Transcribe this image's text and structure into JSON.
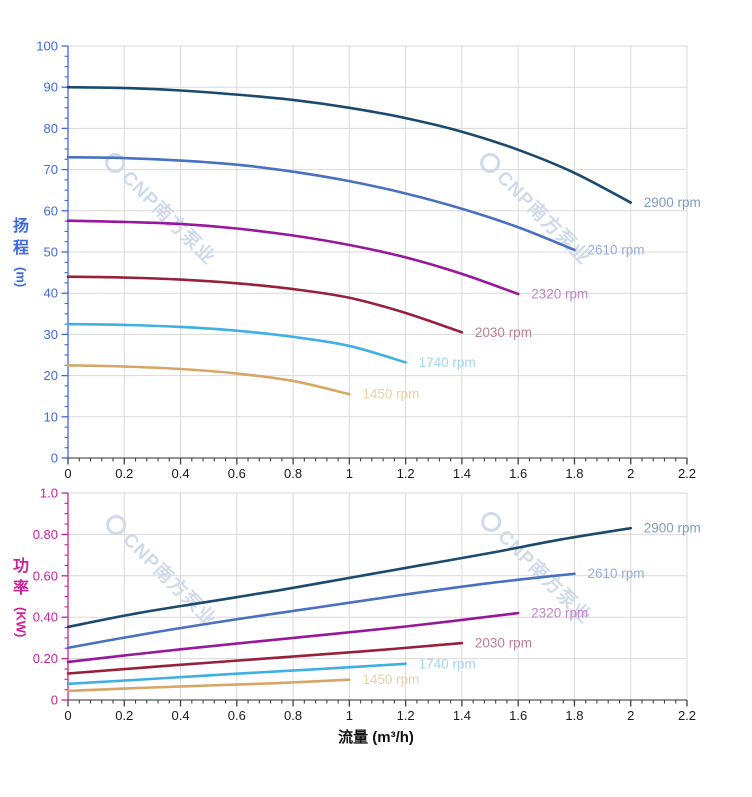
{
  "watermark": {
    "text": "CNP南方泵业",
    "logo_icon": "cnp-circle-logo",
    "color": "#a9bedb"
  },
  "colors": {
    "grid": "#d9d9d9",
    "x_axis_line": "#595959",
    "x_tick": "#404040",
    "x_tick_label": "#1a1a1a",
    "head_axis": "#4169e1",
    "power_axis": "#cc2299"
  },
  "x_axis": {
    "title": "流量 (m³/h)",
    "range": [
      0,
      2.2
    ],
    "ticks": [
      "0",
      "0.2",
      "0.4",
      "0.6",
      "0.8",
      "1",
      "1.2",
      "1.4",
      "1.6",
      "1.8",
      "2",
      "2.2"
    ],
    "minor_step": 0.04
  },
  "chart_data": [
    {
      "type": "line",
      "name": "head-vs-flow",
      "xlabel": "流量 (m³/h)",
      "ylabel": "扬程 (m)",
      "xlim": [
        0,
        2.2
      ],
      "ylim": [
        0,
        100
      ],
      "grid": "on",
      "legend_position": "curve-end-labels",
      "y_axis": {
        "title": "扬程",
        "unit": "(m)",
        "color": "#4169e1",
        "range": [
          0,
          100
        ],
        "ticks": [
          "0",
          "10",
          "20",
          "30",
          "40",
          "50",
          "60",
          "70",
          "80",
          "90",
          "100"
        ],
        "minor_step": 2.5
      },
      "series": [
        {
          "name": "2900 rpm",
          "color": "#1b4a6e",
          "label_color": "#7f9cba",
          "points": [
            [
              0,
              90
            ],
            [
              0.2,
              89.8
            ],
            [
              0.4,
              89.2
            ],
            [
              0.6,
              88.2
            ],
            [
              0.8,
              86.9
            ],
            [
              1.0,
              85.0
            ],
            [
              1.2,
              82.5
            ],
            [
              1.4,
              79.2
            ],
            [
              1.6,
              74.8
            ],
            [
              1.8,
              69.2
            ],
            [
              2.0,
              62.0
            ]
          ]
        },
        {
          "name": "2610 rpm",
          "color": "#4a70c0",
          "label_color": "#97abdf",
          "points": [
            [
              0,
              73
            ],
            [
              0.2,
              72.8
            ],
            [
              0.4,
              72.2
            ],
            [
              0.6,
              71.2
            ],
            [
              0.8,
              69.5
            ],
            [
              1.0,
              67.2
            ],
            [
              1.2,
              64.2
            ],
            [
              1.4,
              60.5
            ],
            [
              1.6,
              56.0
            ],
            [
              1.8,
              50.5
            ]
          ]
        },
        {
          "name": "2320 rpm",
          "color": "#97189a",
          "label_color": "#c183cb",
          "points": [
            [
              0,
              57.6
            ],
            [
              0.2,
              57.3
            ],
            [
              0.4,
              56.8
            ],
            [
              0.6,
              55.7
            ],
            [
              0.8,
              54.0
            ],
            [
              1.0,
              51.7
            ],
            [
              1.2,
              48.7
            ],
            [
              1.4,
              44.7
            ],
            [
              1.6,
              39.8
            ]
          ]
        },
        {
          "name": "2030 rpm",
          "color": "#97203a",
          "label_color": "#bd7f97",
          "points": [
            [
              0,
              44
            ],
            [
              0.2,
              43.8
            ],
            [
              0.4,
              43.3
            ],
            [
              0.6,
              42.4
            ],
            [
              0.8,
              41.0
            ],
            [
              1.0,
              38.9
            ],
            [
              1.2,
              35.2
            ],
            [
              1.4,
              30.5
            ]
          ]
        },
        {
          "name": "1740 rpm",
          "color": "#3fb0e4",
          "label_color": "#a2d5f2",
          "points": [
            [
              0,
              32.5
            ],
            [
              0.2,
              32.3
            ],
            [
              0.4,
              31.8
            ],
            [
              0.6,
              30.9
            ],
            [
              0.8,
              29.4
            ],
            [
              1.0,
              27.2
            ],
            [
              1.2,
              23.2
            ]
          ]
        },
        {
          "name": "1450 rpm",
          "color": "#d7a667",
          "label_color": "#ebd0a6",
          "points": [
            [
              0,
              22.5
            ],
            [
              0.2,
              22.2
            ],
            [
              0.4,
              21.6
            ],
            [
              0.6,
              20.5
            ],
            [
              0.8,
              18.7
            ],
            [
              1.0,
              15.5
            ]
          ]
        }
      ]
    },
    {
      "type": "line",
      "name": "power-vs-flow",
      "xlabel": "流量 (m³/h)",
      "ylabel": "功率 (KW)",
      "xlim": [
        0,
        2.2
      ],
      "ylim": [
        0,
        1.0
      ],
      "grid": "on",
      "legend_position": "curve-end-labels",
      "y_axis": {
        "title": "功率",
        "unit": "(KW)",
        "color": "#cc2299",
        "range": [
          0,
          1.0
        ],
        "ticks": [
          "0",
          "0.20",
          "0.40",
          "0.60",
          "0.80",
          "1.0"
        ],
        "minor_step": 0.05
      },
      "series": [
        {
          "name": "2900 rpm",
          "color": "#1b4a6e",
          "label_color": "#7f9cba",
          "points": [
            [
              0,
              0.353
            ],
            [
              0.25,
              0.42
            ],
            [
              0.5,
              0.475
            ],
            [
              0.75,
              0.53
            ],
            [
              1.0,
              0.59
            ],
            [
              1.25,
              0.65
            ],
            [
              1.5,
              0.71
            ],
            [
              1.75,
              0.775
            ],
            [
              2.0,
              0.83
            ]
          ]
        },
        {
          "name": "2610 rpm",
          "color": "#4a70c0",
          "label_color": "#97abdf",
          "points": [
            [
              0,
              0.252
            ],
            [
              0.3,
              0.325
            ],
            [
              0.6,
              0.39
            ],
            [
              0.9,
              0.45
            ],
            [
              1.2,
              0.51
            ],
            [
              1.5,
              0.565
            ],
            [
              1.8,
              0.61
            ]
          ]
        },
        {
          "name": "2320 rpm",
          "color": "#97189a",
          "label_color": "#c183cb",
          "points": [
            [
              0,
              0.184
            ],
            [
              0.4,
              0.245
            ],
            [
              0.8,
              0.3
            ],
            [
              1.2,
              0.355
            ],
            [
              1.6,
              0.42
            ]
          ]
        },
        {
          "name": "2030 rpm",
          "color": "#97203a",
          "label_color": "#bd7f97",
          "points": [
            [
              0,
              0.128
            ],
            [
              0.35,
              0.165
            ],
            [
              0.7,
              0.2
            ],
            [
              1.05,
              0.235
            ],
            [
              1.4,
              0.275
            ]
          ]
        },
        {
          "name": "1740 rpm",
          "color": "#3fb0e4",
          "label_color": "#a2d5f2",
          "points": [
            [
              0,
              0.078
            ],
            [
              0.3,
              0.102
            ],
            [
              0.6,
              0.127
            ],
            [
              0.9,
              0.15
            ],
            [
              1.2,
              0.175
            ]
          ]
        },
        {
          "name": "1450 rpm",
          "color": "#d7a667",
          "label_color": "#ebd0a6",
          "points": [
            [
              0,
              0.044
            ],
            [
              0.25,
              0.058
            ],
            [
              0.5,
              0.07
            ],
            [
              0.75,
              0.082
            ],
            [
              1.0,
              0.098
            ]
          ]
        }
      ]
    }
  ]
}
